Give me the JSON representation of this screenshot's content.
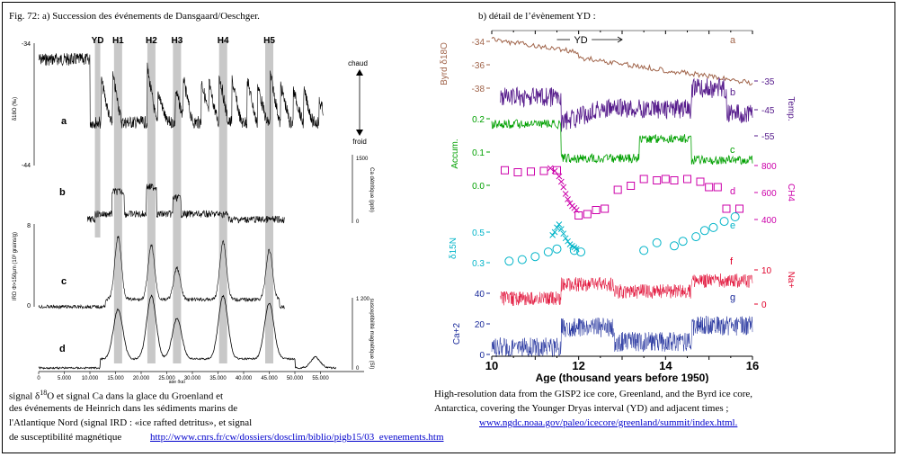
{
  "figure": {
    "left_title": "Fig. 72: a) Succession des événements de Dansgaard/Oeschger.",
    "right_title": "b) détail de l’évènement YD :"
  },
  "captions": {
    "left_line1_pre": "signal δ",
    "left_line1_sup": "18",
    "left_line1_post": "O et signal Ca dans la glace du Groenland et",
    "left_line2": "des événements de Heinrich dans les sédiments marins de",
    "left_line3": "l'Atlantique Nord (signal IRD : «ice rafted detritus», et signal",
    "left_line4": "de susceptibilité magnétique",
    "left_link": "http://www.cnrs.fr/cw/dossiers/dosclim/biblio/pigb15/03_evenements.htm",
    "right_line1": "High-resolution data from the GISP2 ice core, Greenland, and the Byrd ice core,",
    "right_line2": "Antarctica, covering the Younger Dryas interval (YD) and adjacent times ;",
    "right_link": "www.ngdc.noaa.gov/paleo/icecore/greenland/summit/index.html."
  },
  "chart_data": [
    {
      "type": "line",
      "events": [
        "YD",
        "H1",
        "H2",
        "H3",
        "H4",
        "H5"
      ],
      "event_ages": [
        11.5,
        15.5,
        22,
        27,
        36,
        45
      ],
      "x_ticks": [
        "0",
        "5.000",
        "10.000",
        "15.000",
        "20.000",
        "25.000",
        "30.000",
        "35.000",
        "40.000",
        "45.000",
        "50.000",
        "55.000"
      ],
      "xlabel": "age (ka)",
      "xlim": [
        0,
        60
      ],
      "annotations": {
        "warm": "chaud",
        "cold": "froid"
      },
      "panels": [
        {
          "label": "a",
          "ylabel": "δ18O (‰)",
          "y_ticks": [
            "-34",
            "-44"
          ]
        },
        {
          "label": "b",
          "ylabel": "Ca détritique (ppb)",
          "y_ticks": [
            "1500",
            "0"
          ]
        },
        {
          "label": "c",
          "ylabel": "IRD Φ>150µm (10³ grains/g)",
          "y_ticks": [
            "8",
            "0"
          ]
        },
        {
          "label": "d",
          "ylabel": "susceptibilité magnétique (SI)",
          "y_ticks": [
            "1 200",
            "0"
          ]
        }
      ]
    },
    {
      "type": "line",
      "xlabel": "Age (thousand years before 1950)",
      "x_ticks": [
        "10",
        "12",
        "14",
        "16"
      ],
      "xlim": [
        10,
        16
      ],
      "yd_label": "YD",
      "panels": [
        {
          "label": "a",
          "name": "Byrd δ18O",
          "side": "left",
          "y_ticks": [
            "-34",
            "-36",
            "-38"
          ],
          "color": "#a0644a"
        },
        {
          "label": "b",
          "name": "Temp.",
          "side": "right",
          "y_ticks": [
            "-35",
            "-45",
            "-55"
          ],
          "color": "#551a8b"
        },
        {
          "label": "c",
          "name": "Accum.",
          "side": "left",
          "y_ticks": [
            "0.2",
            "0.1",
            "0.0"
          ],
          "color": "#00a000"
        },
        {
          "label": "d",
          "name": "CH4",
          "side": "right",
          "y_ticks": [
            "800",
            "600",
            "400"
          ],
          "color": "#cc00aa"
        },
        {
          "label": "e",
          "name": "δ15N",
          "side": "left",
          "y_ticks": [
            "0.5",
            "0.3"
          ],
          "color": "#00b4c8"
        },
        {
          "label": "f",
          "name": "Na+",
          "side": "right",
          "y_ticks": [
            "10",
            "0"
          ],
          "color": "#e0002a"
        },
        {
          "label": "g",
          "name": "Ca+2",
          "side": "left",
          "y_ticks": [
            "40",
            "20",
            "0"
          ],
          "color": "#1a2a9a"
        }
      ],
      "ch4_squares": [
        [
          10.3,
          765
        ],
        [
          10.6,
          750
        ],
        [
          10.9,
          755
        ],
        [
          11.2,
          760
        ],
        [
          11.5,
          765
        ],
        [
          12.0,
          430
        ],
        [
          12.2,
          440
        ],
        [
          12.4,
          470
        ],
        [
          12.6,
          480
        ],
        [
          12.9,
          620
        ],
        [
          13.2,
          650
        ],
        [
          13.5,
          700
        ],
        [
          13.8,
          690
        ],
        [
          14.0,
          700
        ],
        [
          14.2,
          690
        ],
        [
          14.5,
          700
        ],
        [
          14.8,
          680
        ],
        [
          15.0,
          640
        ],
        [
          15.2,
          640
        ],
        [
          15.4,
          480
        ],
        [
          15.7,
          480
        ]
      ],
      "ch4_crosses": [
        [
          11.35,
          780
        ],
        [
          11.45,
          760
        ],
        [
          11.55,
          720
        ],
        [
          11.6,
          680
        ],
        [
          11.65,
          640
        ],
        [
          11.7,
          590
        ],
        [
          11.75,
          550
        ],
        [
          11.8,
          520
        ],
        [
          11.85,
          500
        ],
        [
          11.9,
          485
        ],
        [
          11.95,
          470
        ]
      ],
      "d15n_circles": [
        [
          10.4,
          0.31
        ],
        [
          10.7,
          0.32
        ],
        [
          11.0,
          0.34
        ],
        [
          11.3,
          0.37
        ],
        [
          11.5,
          0.39
        ],
        [
          11.9,
          0.38
        ],
        [
          12.05,
          0.37
        ],
        [
          13.5,
          0.38
        ],
        [
          13.8,
          0.43
        ],
        [
          14.2,
          0.41
        ],
        [
          14.4,
          0.44
        ],
        [
          14.7,
          0.47
        ],
        [
          14.9,
          0.51
        ],
        [
          15.1,
          0.53
        ],
        [
          15.35,
          0.57
        ],
        [
          15.6,
          0.6
        ]
      ],
      "d15n_crosses": [
        [
          11.4,
          0.48
        ],
        [
          11.45,
          0.5
        ],
        [
          11.5,
          0.53
        ],
        [
          11.55,
          0.55
        ],
        [
          11.6,
          0.52
        ],
        [
          11.65,
          0.49
        ],
        [
          11.7,
          0.46
        ],
        [
          11.75,
          0.44
        ],
        [
          11.8,
          0.42
        ],
        [
          11.85,
          0.41
        ],
        [
          11.9,
          0.4
        ],
        [
          11.95,
          0.39
        ]
      ]
    }
  ]
}
